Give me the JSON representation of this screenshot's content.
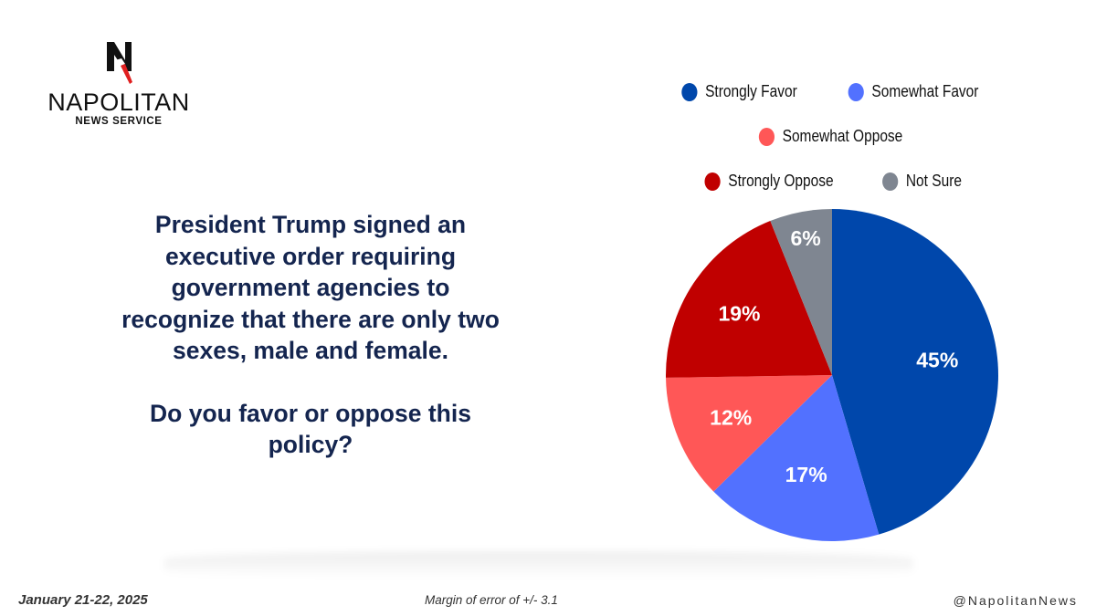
{
  "logo": {
    "icon": "napolitan-n-eagle-icon",
    "name": "NAPOLITAN",
    "subtitle": "NEWS SERVICE"
  },
  "question": {
    "lines": [
      "President Trump signed an",
      "executive order requiring",
      "government agencies to",
      "recognize that there are only two",
      "sexes, male and female."
    ],
    "prompt_lines": [
      "Do you favor or oppose this",
      "policy?"
    ]
  },
  "chart_data": {
    "type": "pie",
    "title": "",
    "start_angle": "12 o'clock, clockwise",
    "legend_position": "top-right",
    "slices": [
      {
        "label": "Strongly Favor",
        "value": 45,
        "display": "45%",
        "color": "#0047ab"
      },
      {
        "label": "Somewhat Favor",
        "value": 17,
        "display": "17%",
        "color": "#5271ff"
      },
      {
        "label": "Somewhat Oppose",
        "value": 12,
        "display": "12%",
        "color": "#ff5757"
      },
      {
        "label": "Strongly Oppose",
        "value": 19,
        "display": "19%",
        "color": "#c00000"
      },
      {
        "label": "Not Sure",
        "value": 6,
        "display": "6%",
        "color": "#7f8691"
      }
    ]
  },
  "legend": {
    "rows": [
      [
        0,
        1
      ],
      [
        2
      ],
      [
        3,
        4
      ]
    ]
  },
  "footer": {
    "date": "January 21-22, 2025",
    "margin_of_error": "Margin of error of +/- 3.1",
    "handle": "@NapolitanNews"
  }
}
